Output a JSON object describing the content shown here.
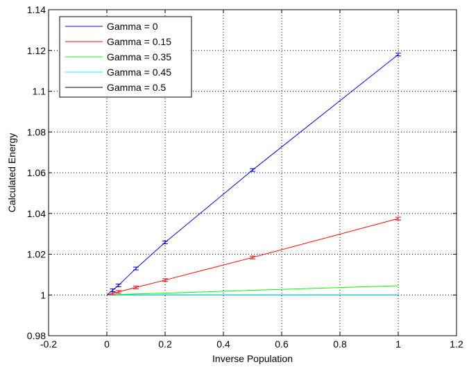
{
  "chart_data": {
    "type": "line",
    "title": "",
    "xlabel": "Inverse Population",
    "ylabel": "Calculated Energy",
    "xlim": [
      -0.2,
      1.2
    ],
    "ylim": [
      0.98,
      1.14
    ],
    "xticks": [
      -0.2,
      0,
      0.2,
      0.4,
      0.6,
      0.8,
      1,
      1.2
    ],
    "yticks": [
      0.98,
      1,
      1.02,
      1.04,
      1.06,
      1.08,
      1.1,
      1.12,
      1.14
    ],
    "xtick_labels": [
      "-0.2",
      "0",
      "0.2",
      "0.4",
      "0.6",
      "0.8",
      "1",
      "1.2"
    ],
    "ytick_labels": [
      "0.98",
      "1",
      "1.02",
      "1.04",
      "1.06",
      "1.08",
      "1.1",
      "1.12",
      "1.14"
    ],
    "grid": true,
    "legend_position": "top-left",
    "x": [
      0,
      0.02,
      0.04,
      0.1,
      0.2,
      0.5,
      1
    ],
    "series": [
      {
        "name": "Gamma = 0",
        "color": "#0000ff",
        "values": [
          1.0,
          1.0023,
          1.0047,
          1.013,
          1.0258,
          1.0613,
          1.118
        ],
        "error_bars": true
      },
      {
        "name": "Gamma = 0.15",
        "color": "#ff0000",
        "values": [
          1.0,
          1.0008,
          1.0015,
          1.0037,
          1.0073,
          1.0184,
          1.0375
        ],
        "error_bars": true
      },
      {
        "name": "Gamma = 0.35",
        "color": "#00ff00",
        "values": [
          1.0,
          1.0001,
          1.0002,
          1.0005,
          1.0009,
          1.0023,
          1.0045
        ],
        "error_bars": false
      },
      {
        "name": "Gamma = 0.45",
        "color": "#00ffff",
        "values": [
          1.0,
          1.0,
          1.0,
          1.0,
          1.0,
          1.0,
          1.0
        ],
        "error_bars": false
      },
      {
        "name": "Gamma = 0.5",
        "color": "#000000",
        "values": [
          1.0,
          1.0,
          1.0,
          1.0,
          1.0,
          1.0,
          1.0
        ],
        "error_bars": false
      }
    ]
  }
}
